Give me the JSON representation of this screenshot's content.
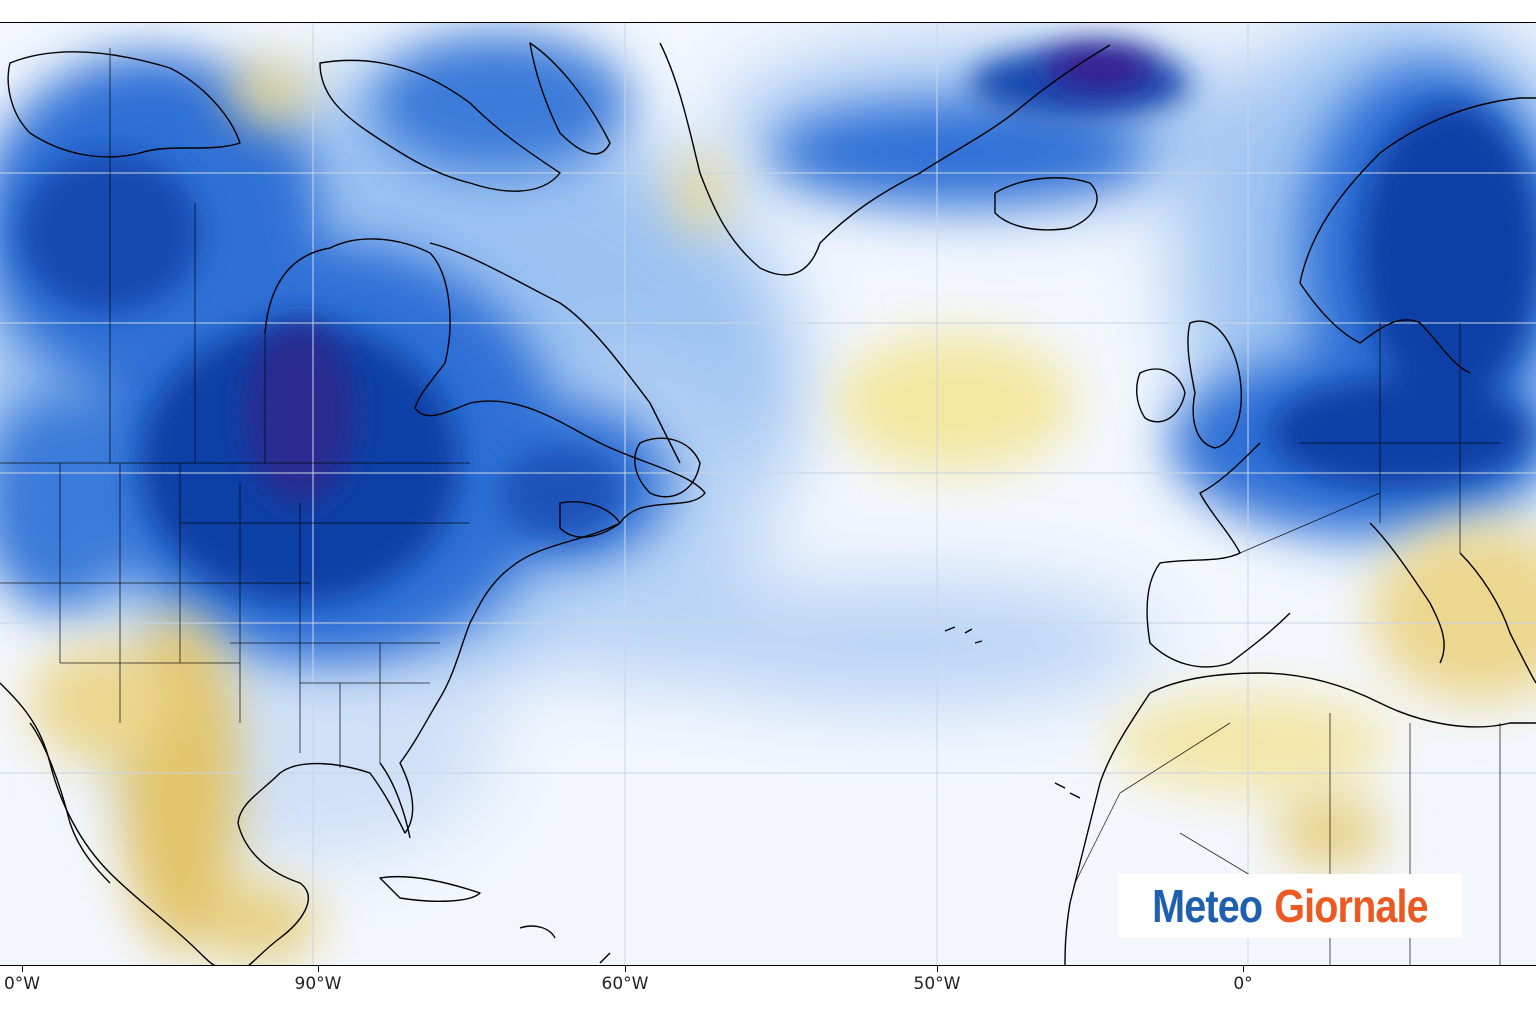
{
  "map": {
    "longitude_labels": [
      "0°W",
      "90°W",
      "60°W",
      "50°W",
      "0°"
    ],
    "color_scale": {
      "cold_deep": "#3a1f8f",
      "cold_strong": "#0b3fa6",
      "cold_medium": "#2f6fd6",
      "cold_light": "#9cc2f2",
      "neutral": "#f4f8fd",
      "warm_light": "#f6edb4",
      "warm_medium": "#e2c46a"
    },
    "graticule_color": "#c9d5e6",
    "coastline_color": "#000000"
  },
  "logo": {
    "word1": "Meteo",
    "word2": "Giornale",
    "word1_color": "#1f5faf",
    "word2_color": "#ea5a22"
  }
}
